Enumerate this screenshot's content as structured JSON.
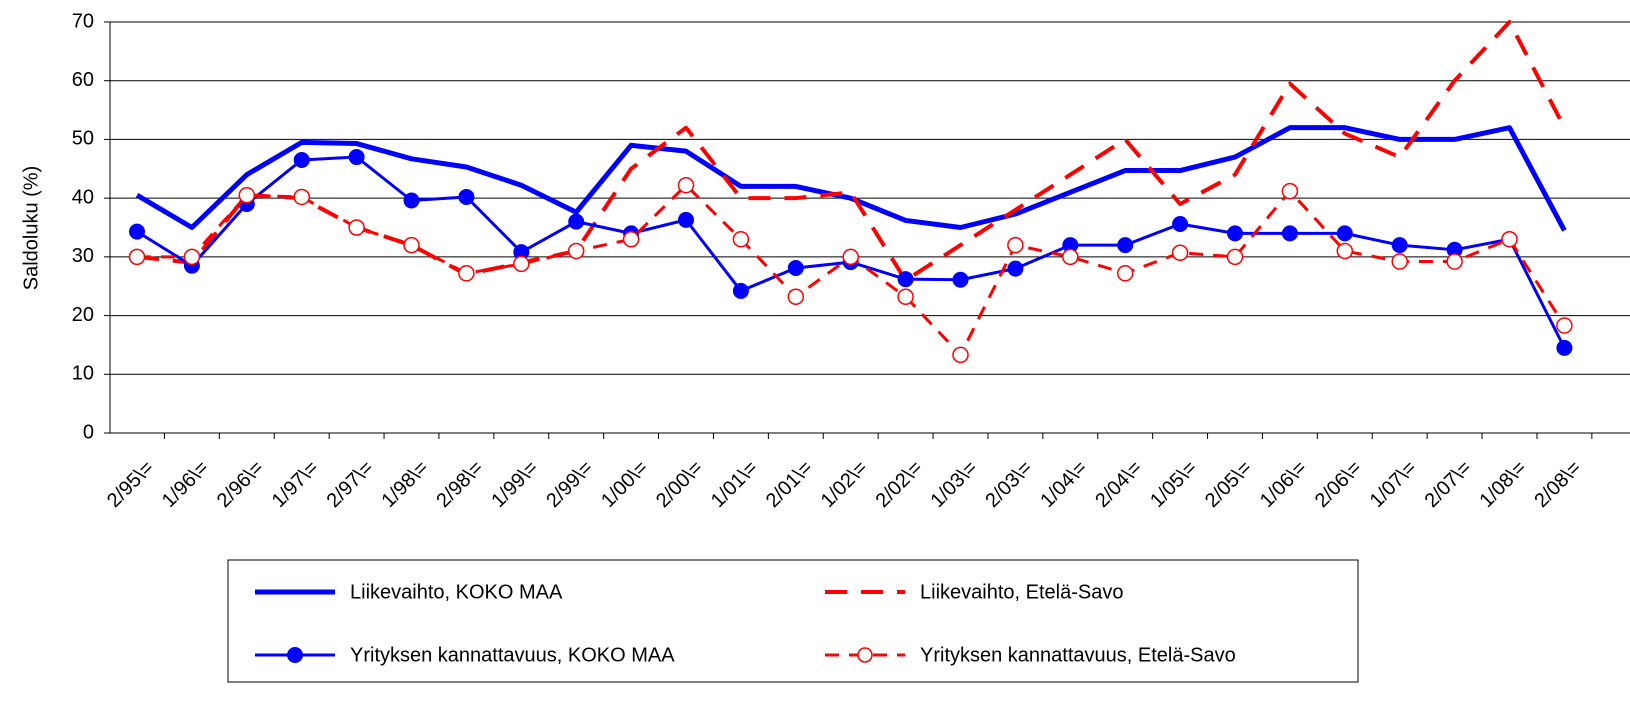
{
  "chart_data": {
    "type": "line",
    "y_label": "Saldoluku (%)",
    "categories": [
      "2/95\\=",
      "1/96\\=",
      "2/96\\=",
      "1/97\\=",
      "2/97\\=",
      "1/98\\=",
      "2/98\\=",
      "1/99\\=",
      "2/99\\=",
      "1/00\\=",
      "2/00\\=",
      "1/01\\=",
      "2/01\\=",
      "1/02\\=",
      "2/02\\=",
      "1/03\\=",
      "2/03\\=",
      "1/04\\=",
      "2/04\\=",
      "1/05\\=",
      "2/05\\=",
      "1/06\\=",
      "2/06\\=",
      "1/07\\=",
      "2/07\\=",
      "1/08\\=",
      "2/08\\="
    ],
    "series": [
      {
        "name": "Liikevaihto, KOKO MAA",
        "color": "#0000ff",
        "dash": "solid",
        "marker": "none",
        "width": 5,
        "values": [
          40.5,
          35,
          44,
          49.5,
          49.3,
          46.7,
          45.3,
          42.2,
          37.6,
          49,
          48,
          42,
          42,
          40,
          36.2,
          35,
          37.3,
          41,
          44.7,
          44.7,
          47,
          52,
          52,
          50,
          50,
          52,
          34.5
        ]
      },
      {
        "name": "Liikevaihto, Etelä-Savo",
        "color": "#ff0000",
        "dash": "long",
        "marker": "none",
        "width": 4,
        "values": [
          30,
          29,
          40.5,
          40,
          35,
          32,
          27,
          29,
          31,
          45,
          52,
          40,
          40,
          41,
          26,
          32,
          38,
          44,
          50,
          39,
          44,
          59.5,
          51,
          47,
          60,
          70,
          52
        ]
      },
      {
        "name": "Yrityksen kannattavuus, KOKO MAA",
        "color": "#0000ff",
        "dash": "solid",
        "marker": "dot",
        "width": 3,
        "values": [
          34.3,
          28.5,
          39,
          46.5,
          47,
          39.6,
          40.2,
          30.8,
          36,
          34,
          36.3,
          24.2,
          28.1,
          29.1,
          26.2,
          26.1,
          28,
          32,
          32,
          35.6,
          34,
          34,
          34,
          32,
          31.2,
          33,
          14.5
        ]
      },
      {
        "name": "Yrityksen kannattavuus, Etelä-Savo",
        "color": "#ff0000",
        "dash": "short",
        "marker": "circle",
        "width": 3,
        "values": [
          30,
          30,
          40.5,
          40.2,
          35,
          32,
          27.2,
          28.8,
          31,
          33,
          42.2,
          33,
          23.2,
          30,
          23.2,
          13.3,
          32,
          30,
          27.2,
          30.7,
          30,
          41.2,
          31,
          29.2,
          29.2,
          33,
          18.3
        ]
      }
    ],
    "ylim": [
      0,
      70
    ],
    "yticks": [
      0,
      10,
      20,
      30,
      40,
      50,
      60,
      70
    ],
    "grid": true,
    "legend": "bottom"
  }
}
